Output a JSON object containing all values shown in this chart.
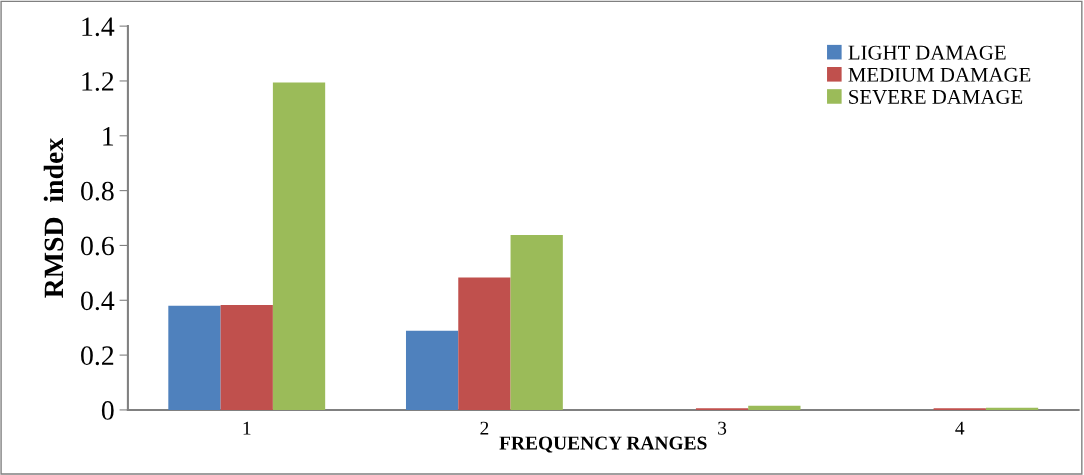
{
  "chart_data": {
    "type": "bar",
    "xlabel": "FREQUENCY RANGES",
    "ylabel": "RMSD  index",
    "categories": [
      "1",
      "2",
      "3",
      "4"
    ],
    "series": [
      {
        "name": "LIGHT DAMAGE",
        "color": "#4f81bd",
        "values": [
          0.38,
          0.289,
          0,
          0
        ]
      },
      {
        "name": "MEDIUM DAMAGE",
        "color": "#c0504d",
        "values": [
          0.383,
          0.483,
          0.006,
          0.006
        ]
      },
      {
        "name": "SEVERE DAMAGE",
        "color": "#9bbb59",
        "values": [
          1.194,
          0.638,
          0.015,
          0.008
        ]
      }
    ],
    "ylim": [
      0,
      1.4
    ],
    "yticks": [
      0,
      0.2,
      0.4,
      0.6,
      0.8,
      1,
      1.2,
      1.4
    ],
    "grid": false,
    "legend": "top right"
  }
}
